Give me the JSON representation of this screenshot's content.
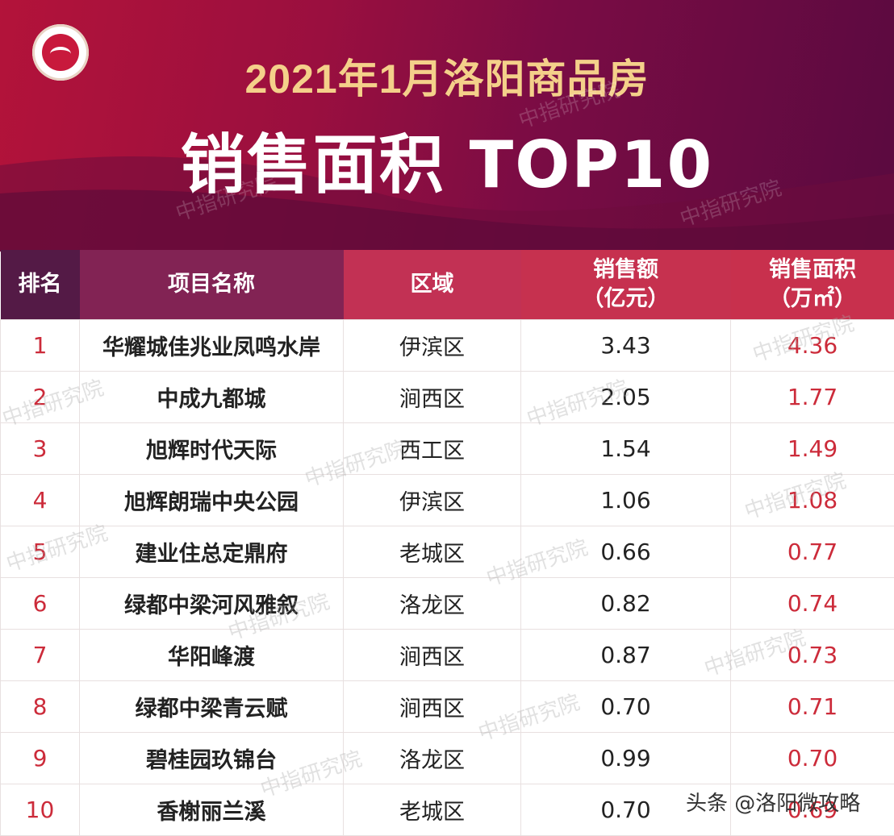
{
  "header": {
    "title_line1": "2021年1月洛阳商品房",
    "title_line2": "销售面积 TOP10"
  },
  "table": {
    "columns": {
      "rank": "排名",
      "name": "项目名称",
      "district": "区域",
      "sales_line1": "销售额",
      "sales_line2": "（亿元）",
      "area_line1": "销售面积",
      "area_line2": "（万㎡）"
    },
    "rows": [
      {
        "rank": "1",
        "name": "华耀城佳兆业凤鸣水岸",
        "district": "伊滨区",
        "sales": "3.43",
        "area": "4.36"
      },
      {
        "rank": "2",
        "name": "中成九都城",
        "district": "涧西区",
        "sales": "2.05",
        "area": "1.77"
      },
      {
        "rank": "3",
        "name": "旭辉时代天际",
        "district": "西工区",
        "sales": "1.54",
        "area": "1.49"
      },
      {
        "rank": "4",
        "name": "旭辉朗瑞中央公园",
        "district": "伊滨区",
        "sales": "1.06",
        "area": "1.08"
      },
      {
        "rank": "5",
        "name": "建业住总定鼎府",
        "district": "老城区",
        "sales": "0.66",
        "area": "0.77"
      },
      {
        "rank": "6",
        "name": "绿都中梁河风雅叙",
        "district": "洛龙区",
        "sales": "0.82",
        "area": "0.74"
      },
      {
        "rank": "7",
        "name": "华阳峰渡",
        "district": "涧西区",
        "sales": "0.87",
        "area": "0.73"
      },
      {
        "rank": "8",
        "name": "绿都中梁青云赋",
        "district": "涧西区",
        "sales": "0.70",
        "area": "0.71"
      },
      {
        "rank": "9",
        "name": "碧桂园玖锦台",
        "district": "洛龙区",
        "sales": "0.99",
        "area": "0.70"
      },
      {
        "rank": "10",
        "name": "香榭丽兰溪",
        "district": "老城区",
        "sales": "0.70",
        "area": "0.69"
      }
    ]
  },
  "watermark": "中指研究院",
  "credit": "头条 @洛阳微攻略",
  "colors": {
    "banner": "#9a0f3f",
    "title_gold": "#f4d08a",
    "rank_red": "#cc2b3a"
  }
}
